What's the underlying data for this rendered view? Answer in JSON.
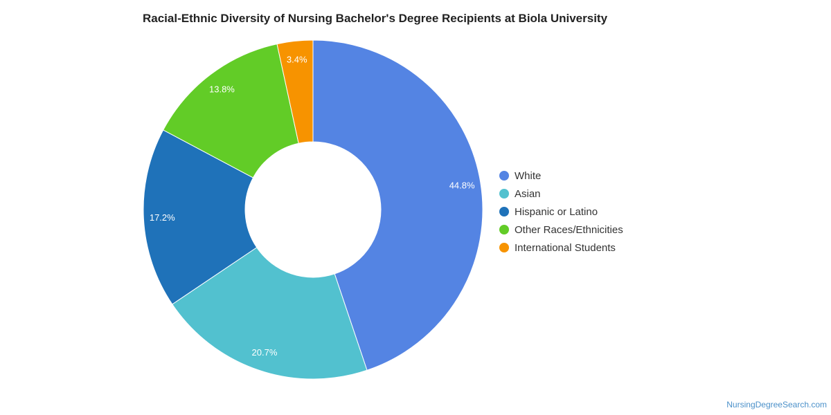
{
  "chart_data": {
    "type": "pie",
    "variant": "donut",
    "title": "Racial-Ethnic Diversity of Nursing Bachelor's Degree Recipients at Biola University",
    "slices": [
      {
        "label": "White",
        "value": 44.8,
        "value_label": "44.8%",
        "color": "#5484e3"
      },
      {
        "label": "Asian",
        "value": 20.7,
        "value_label": "20.7%",
        "color": "#52c1cf"
      },
      {
        "label": "Hispanic or Latino",
        "value": 17.2,
        "value_label": "17.2%",
        "color": "#1f72b9"
      },
      {
        "label": "Other Races/Ethnicities",
        "value": 13.8,
        "value_label": "13.8%",
        "color": "#62cc27"
      },
      {
        "label": "International Students",
        "value": 3.4,
        "value_label": "3.4%",
        "color": "#f79300"
      }
    ],
    "legend_position": "right"
  },
  "source": {
    "label": "NursingDegreeSearch.com"
  }
}
